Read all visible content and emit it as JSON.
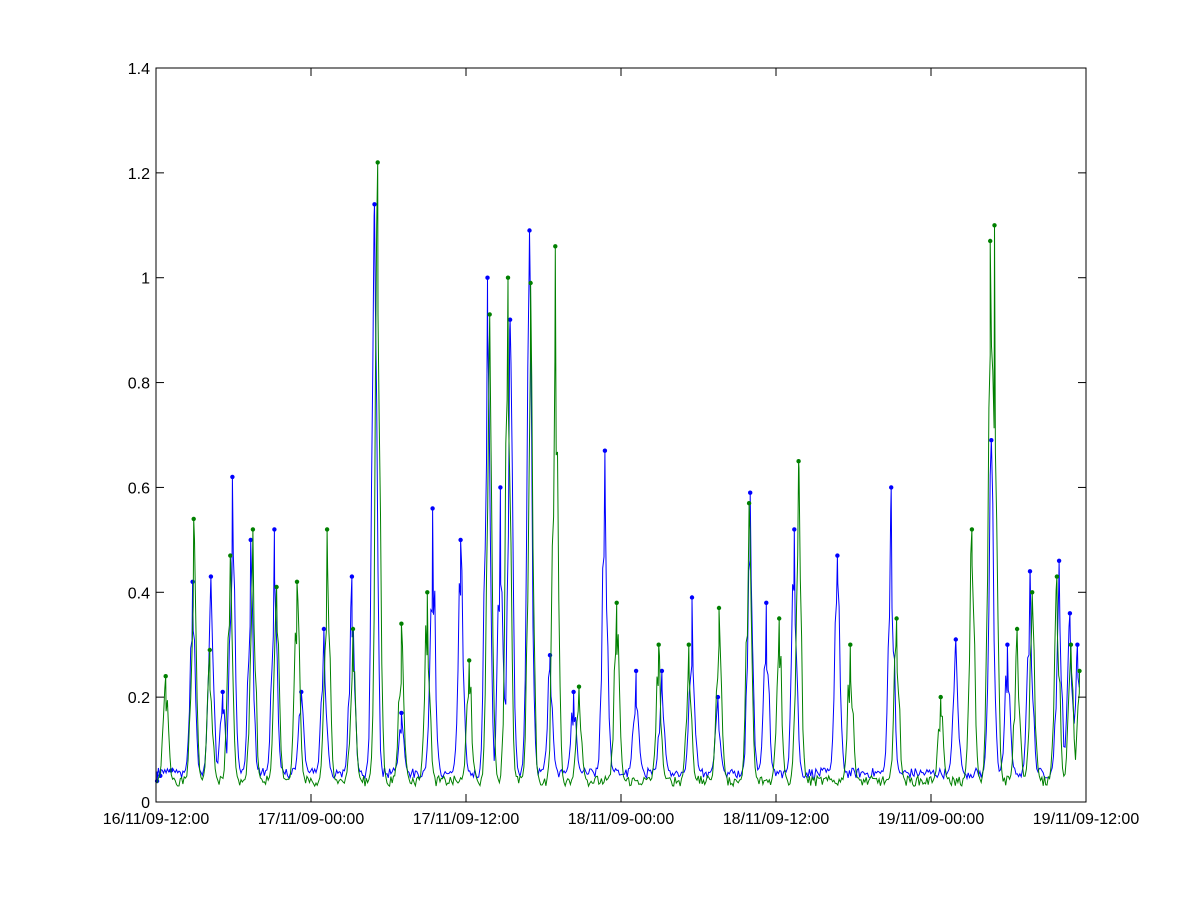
{
  "chart_data": {
    "type": "line",
    "title": "",
    "xlabel": "",
    "ylabel": "",
    "x_axis": {
      "kind": "datetime",
      "range": [
        "2009-11-16T12:00",
        "2009-11-19T12:00"
      ],
      "ticks": [
        {
          "value": "2009-11-16T12:00",
          "label": "16/11/09-12:00"
        },
        {
          "value": "2009-11-17T00:00",
          "label": "17/11/09-00:00"
        },
        {
          "value": "2009-11-17T12:00",
          "label": "17/11/09-12:00"
        },
        {
          "value": "2009-11-18T00:00",
          "label": "18/11/09-00:00"
        },
        {
          "value": "2009-11-18T12:00",
          "label": "18/11/09-12:00"
        },
        {
          "value": "2009-11-19T00:00",
          "label": "19/11/09-00:00"
        },
        {
          "value": "2009-11-19T12:00",
          "label": "19/11/09-12:00"
        }
      ]
    },
    "y_axis": {
      "range": [
        0,
        1.4
      ],
      "ticks": [
        {
          "value": 0,
          "label": "0"
        },
        {
          "value": 0.2,
          "label": "0.2"
        },
        {
          "value": 0.4,
          "label": "0.4"
        },
        {
          "value": 0.6,
          "label": "0.6"
        },
        {
          "value": 0.8,
          "label": "0.8"
        },
        {
          "value": 1.0,
          "label": "1"
        },
        {
          "value": 1.2,
          "label": "1.2"
        },
        {
          "value": 1.4,
          "label": "1.4"
        }
      ]
    },
    "grid": false,
    "legend": "none",
    "marker": "dot",
    "series": [
      {
        "color": "#0000ff",
        "baseline": 0.055,
        "points": [
          [
            "2009-11-16T12:05",
            0.04
          ],
          [
            "2009-11-16T12:20",
            0.05
          ],
          [
            "2009-11-16T13:10",
            0.06
          ],
          [
            "2009-11-16T14:50",
            0.42
          ],
          [
            "2009-11-16T16:15",
            0.43
          ],
          [
            "2009-11-16T17:10",
            0.21
          ],
          [
            "2009-11-16T17:55",
            0.62
          ],
          [
            "2009-11-16T19:20",
            0.5
          ],
          [
            "2009-11-16T21:10",
            0.52
          ],
          [
            "2009-11-16T23:15",
            0.21
          ],
          [
            "2009-11-17T01:00",
            0.33
          ],
          [
            "2009-11-17T03:10",
            0.43
          ],
          [
            "2009-11-17T04:55",
            1.14
          ],
          [
            "2009-11-17T07:00",
            0.17
          ],
          [
            "2009-11-17T09:25",
            0.56
          ],
          [
            "2009-11-17T11:35",
            0.5
          ],
          [
            "2009-11-17T13:40",
            1.0
          ],
          [
            "2009-11-17T14:40",
            0.6
          ],
          [
            "2009-11-17T15:25",
            0.92
          ],
          [
            "2009-11-17T16:55",
            1.09
          ],
          [
            "2009-11-17T18:30",
            0.28
          ],
          [
            "2009-11-17T20:20",
            0.21
          ],
          [
            "2009-11-17T22:45",
            0.67
          ],
          [
            "2009-11-18T01:10",
            0.25
          ],
          [
            "2009-11-18T03:10",
            0.25
          ],
          [
            "2009-11-18T05:30",
            0.39
          ],
          [
            "2009-11-18T07:30",
            0.2
          ],
          [
            "2009-11-18T10:00",
            0.59
          ],
          [
            "2009-11-18T11:15",
            0.38
          ],
          [
            "2009-11-18T13:25",
            0.52
          ],
          [
            "2009-11-18T16:45",
            0.47
          ],
          [
            "2009-11-18T20:55",
            0.6
          ],
          [
            "2009-11-19T01:55",
            0.31
          ],
          [
            "2009-11-19T04:40",
            0.69
          ],
          [
            "2009-11-19T05:55",
            0.3
          ],
          [
            "2009-11-19T07:40",
            0.44
          ],
          [
            "2009-11-19T09:55",
            0.46
          ],
          [
            "2009-11-19T10:45",
            0.36
          ],
          [
            "2009-11-19T11:20",
            0.3
          ]
        ]
      },
      {
        "color": "#008000",
        "baseline": 0.04,
        "points": [
          [
            "2009-11-16T12:45",
            0.24
          ],
          [
            "2009-11-16T14:55",
            0.54
          ],
          [
            "2009-11-16T16:10",
            0.29
          ],
          [
            "2009-11-16T17:45",
            0.47
          ],
          [
            "2009-11-16T19:30",
            0.52
          ],
          [
            "2009-11-16T21:20",
            0.41
          ],
          [
            "2009-11-16T22:55",
            0.42
          ],
          [
            "2009-11-17T01:15",
            0.52
          ],
          [
            "2009-11-17T03:15",
            0.33
          ],
          [
            "2009-11-17T05:10",
            1.22
          ],
          [
            "2009-11-17T07:00",
            0.34
          ],
          [
            "2009-11-17T09:00",
            0.4
          ],
          [
            "2009-11-17T12:15",
            0.27
          ],
          [
            "2009-11-17T13:50",
            0.93
          ],
          [
            "2009-11-17T15:15",
            1.0
          ],
          [
            "2009-11-17T17:00",
            0.99
          ],
          [
            "2009-11-17T18:55",
            1.06
          ],
          [
            "2009-11-17T20:45",
            0.22
          ],
          [
            "2009-11-17T23:40",
            0.38
          ],
          [
            "2009-11-18T02:55",
            0.3
          ],
          [
            "2009-11-18T05:15",
            0.3
          ],
          [
            "2009-11-18T07:35",
            0.37
          ],
          [
            "2009-11-18T09:55",
            0.57
          ],
          [
            "2009-11-18T12:15",
            0.35
          ],
          [
            "2009-11-18T13:45",
            0.65
          ],
          [
            "2009-11-18T17:45",
            0.3
          ],
          [
            "2009-11-18T21:20",
            0.35
          ],
          [
            "2009-11-19T00:45",
            0.2
          ],
          [
            "2009-11-19T03:10",
            0.52
          ],
          [
            "2009-11-19T04:35",
            1.07
          ],
          [
            "2009-11-19T04:55",
            1.1
          ],
          [
            "2009-11-19T06:40",
            0.33
          ],
          [
            "2009-11-19T07:50",
            0.4
          ],
          [
            "2009-11-19T09:45",
            0.43
          ],
          [
            "2009-11-19T10:50",
            0.3
          ],
          [
            "2009-11-19T11:30",
            0.25
          ]
        ]
      }
    ]
  }
}
